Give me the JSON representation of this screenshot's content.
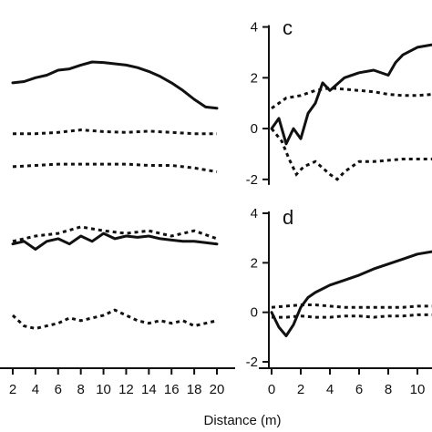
{
  "xlabel": "Distance (m)",
  "chart_data": [
    {
      "type": "line",
      "panel": "",
      "title": "",
      "xlabel": "",
      "ylabel": "",
      "xlim": [
        2,
        20
      ],
      "ylim": [
        -2.4,
        4.2
      ],
      "xticks": [
        2,
        4,
        6,
        8,
        10,
        12,
        14,
        16,
        18,
        20
      ],
      "yticks": [],
      "series": [
        {
          "style": "solid",
          "x": [
            2,
            3,
            4,
            5,
            6,
            7,
            8,
            9,
            10,
            11,
            12,
            13,
            14,
            15,
            16,
            17,
            18,
            19,
            20
          ],
          "y": [
            1.8,
            1.85,
            2.0,
            2.1,
            2.3,
            2.35,
            2.5,
            2.62,
            2.6,
            2.55,
            2.5,
            2.4,
            2.25,
            2.05,
            1.8,
            1.5,
            1.15,
            0.85,
            0.8
          ]
        },
        {
          "style": "dashed",
          "x": [
            2,
            4,
            6,
            8,
            10,
            12,
            14,
            16,
            18,
            20
          ],
          "y": [
            -0.2,
            -0.2,
            -0.15,
            -0.05,
            -0.12,
            -0.15,
            -0.1,
            -0.15,
            -0.2,
            -0.2
          ]
        },
        {
          "style": "dashed",
          "x": [
            2,
            4,
            6,
            8,
            10,
            12,
            14,
            16,
            18,
            20
          ],
          "y": [
            -1.5,
            -1.45,
            -1.4,
            -1.4,
            -1.4,
            -1.4,
            -1.45,
            -1.45,
            -1.55,
            -1.7
          ]
        }
      ]
    },
    {
      "type": "line",
      "panel": "c",
      "title": "",
      "xlabel": "",
      "ylabel": "",
      "xlim": [
        0,
        11
      ],
      "ylim": [
        -2.4,
        4.2
      ],
      "xticks": [],
      "yticks": [
        4,
        2,
        0,
        -2
      ],
      "series": [
        {
          "style": "solid",
          "x": [
            0,
            0.5,
            1,
            1.5,
            2,
            2.5,
            3,
            3.5,
            4,
            5,
            6,
            7,
            8,
            8.5,
            9,
            10,
            11
          ],
          "y": [
            0,
            0.4,
            -0.6,
            0,
            -0.4,
            0.6,
            1.0,
            1.8,
            1.5,
            2.0,
            2.2,
            2.3,
            2.1,
            2.6,
            2.9,
            3.2,
            3.3
          ]
        },
        {
          "style": "dashed",
          "x": [
            0,
            1,
            2,
            3,
            4,
            5,
            6,
            7,
            8,
            9,
            10,
            11
          ],
          "y": [
            0.8,
            1.2,
            1.3,
            1.5,
            1.6,
            1.55,
            1.5,
            1.45,
            1.35,
            1.3,
            1.3,
            1.35
          ]
        },
        {
          "style": "dashed",
          "x": [
            0,
            0.7,
            1.2,
            1.7,
            2.2,
            3,
            4,
            4.5,
            5,
            6,
            7,
            8,
            9,
            10,
            11
          ],
          "y": [
            0,
            -0.5,
            -1.2,
            -1.8,
            -1.5,
            -1.3,
            -1.8,
            -2.0,
            -1.7,
            -1.3,
            -1.3,
            -1.25,
            -1.2,
            -1.2,
            -1.2
          ]
        }
      ]
    },
    {
      "type": "line",
      "panel": "",
      "title": "",
      "xlabel": "",
      "ylabel": "",
      "xlim": [
        2,
        20
      ],
      "ylim": [
        -1.8,
        4.2
      ],
      "xticks": [],
      "yticks": [],
      "series": [
        {
          "style": "solid",
          "x": [
            2,
            3,
            4,
            5,
            6,
            7,
            8,
            9,
            10,
            11,
            12,
            13,
            14,
            15,
            16,
            17,
            18,
            19,
            20
          ],
          "y": [
            2.9,
            3.0,
            2.7,
            3.0,
            3.1,
            2.9,
            3.2,
            3.0,
            3.3,
            3.1,
            3.2,
            3.15,
            3.2,
            3.1,
            3.05,
            3.0,
            3.0,
            2.95,
            2.9
          ]
        },
        {
          "style": "dashed",
          "x": [
            2,
            4,
            6,
            8,
            10,
            12,
            14,
            16,
            18,
            20
          ],
          "y": [
            3.0,
            3.2,
            3.3,
            3.55,
            3.4,
            3.3,
            3.4,
            3.2,
            3.4,
            3.1
          ]
        },
        {
          "style": "dashed",
          "x": [
            2,
            3,
            4,
            5,
            6,
            7,
            8,
            9,
            10,
            11,
            12,
            13,
            14,
            15,
            16,
            17,
            18,
            19,
            20
          ],
          "y": [
            0.2,
            -0.2,
            -0.3,
            -0.2,
            -0.1,
            0.1,
            0.0,
            0.1,
            0.2,
            0.4,
            0.2,
            0.0,
            -0.1,
            0.0,
            -0.1,
            0.0,
            -0.2,
            -0.1,
            0.0
          ]
        }
      ]
    },
    {
      "type": "line",
      "panel": "d",
      "title": "",
      "xlabel": "",
      "ylabel": "",
      "xlim": [
        0,
        11
      ],
      "ylim": [
        -2,
        4
      ],
      "xticks": [
        0,
        2,
        4,
        6,
        8,
        10
      ],
      "yticks": [
        4,
        2,
        0,
        -2
      ],
      "series": [
        {
          "style": "solid",
          "x": [
            0,
            0.5,
            1,
            1.5,
            2,
            2.5,
            3,
            4,
            5,
            6,
            7,
            8,
            9,
            10,
            11
          ],
          "y": [
            0,
            -0.6,
            -0.95,
            -0.5,
            0.2,
            0.6,
            0.8,
            1.1,
            1.3,
            1.5,
            1.75,
            1.95,
            2.15,
            2.35,
            2.45
          ]
        },
        {
          "style": "dashed",
          "x": [
            0,
            1,
            2,
            3,
            4,
            5,
            6,
            7,
            8,
            9,
            10,
            11
          ],
          "y": [
            0.2,
            0.25,
            0.3,
            0.3,
            0.25,
            0.2,
            0.2,
            0.2,
            0.2,
            0.2,
            0.25,
            0.25
          ]
        },
        {
          "style": "dashed",
          "x": [
            0,
            1,
            2,
            3,
            4,
            5,
            6,
            7,
            8,
            9,
            10,
            11
          ],
          "y": [
            -0.2,
            -0.2,
            -0.15,
            -0.2,
            -0.2,
            -0.15,
            -0.15,
            -0.2,
            -0.15,
            -0.15,
            -0.1,
            -0.1
          ]
        }
      ]
    }
  ]
}
